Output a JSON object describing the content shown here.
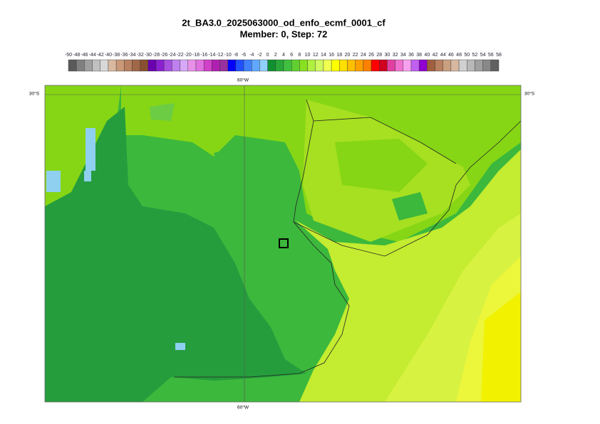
{
  "title": "2t_BA3.0_2025063000_od_enfo_ecmf_0001_cf",
  "subtitle": "Member: 0, Step: 72",
  "colorbar": {
    "ticks": [
      -50,
      -48,
      -46,
      -44,
      -42,
      -40,
      -38,
      -36,
      -34,
      -32,
      -30,
      -28,
      -26,
      -24,
      -22,
      -20,
      -18,
      -16,
      -14,
      -12,
      -10,
      -8,
      -6,
      -4,
      -2,
      0,
      2,
      4,
      6,
      8,
      10,
      12,
      14,
      16,
      18,
      20,
      22,
      24,
      26,
      28,
      30,
      32,
      34,
      36,
      38,
      40,
      42,
      44,
      46,
      48,
      50,
      52,
      54,
      56,
      58
    ],
    "colors": [
      "#5a5a5a",
      "#808080",
      "#a0a0a0",
      "#c0c0c0",
      "#d8d8d8",
      "#d9b8a0",
      "#c89878",
      "#b88060",
      "#a06848",
      "#885030",
      "#6a00b0",
      "#8a20d0",
      "#a850e0",
      "#c080f0",
      "#d8a8f8",
      "#e890e8",
      "#e070e0",
      "#d040c8",
      "#b020b0",
      "#9a30a0",
      "#0000ff",
      "#2050ff",
      "#4080ff",
      "#60a8ff",
      "#90d0ff",
      "#109030",
      "#28a838",
      "#40c040",
      "#60d030",
      "#88e020",
      "#b0f040",
      "#d0f860",
      "#f0ff50",
      "#ffff00",
      "#ffe000",
      "#ffc000",
      "#ffa000",
      "#ff8000",
      "#ff0000",
      "#d00020",
      "#e040a0",
      "#f070d0",
      "#f8a0f0",
      "#c060f0",
      "#9000d0",
      "#a06040",
      "#b88060",
      "#c8a080",
      "#d8b8a0",
      "#d0d0d0",
      "#b8b8b8",
      "#a0a0a0",
      "#888888",
      "#606060"
    ]
  },
  "map": {
    "lon_label": "60°W",
    "lat_label": "30°S"
  }
}
